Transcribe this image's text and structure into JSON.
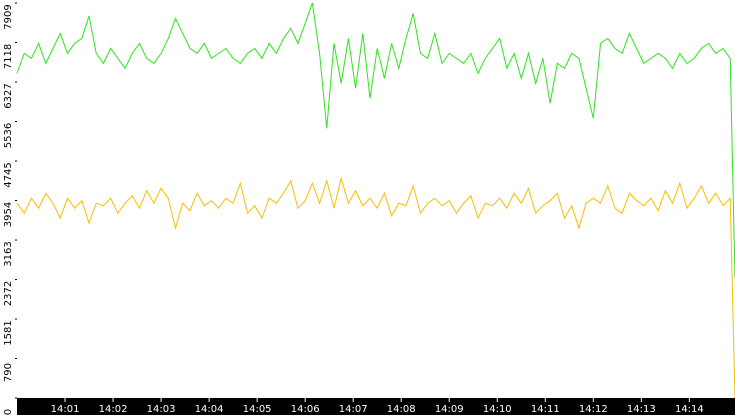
{
  "chart_data": {
    "type": "line",
    "x": [
      0,
      0.15,
      0.3,
      0.45,
      0.6,
      0.75,
      0.9,
      1.05,
      1.2,
      1.35,
      1.5,
      1.65,
      1.8,
      1.95,
      2.1,
      2.25,
      2.4,
      2.55,
      2.7,
      2.85,
      3,
      3.15,
      3.3,
      3.45,
      3.6,
      3.75,
      3.9,
      4.05,
      4.2,
      4.35,
      4.5,
      4.65,
      4.8,
      4.95,
      5.1,
      5.25,
      5.4,
      5.55,
      5.7,
      5.85,
      6,
      6.15,
      6.3,
      6.45,
      6.6,
      6.75,
      6.9,
      7.05,
      7.2,
      7.35,
      7.5,
      7.65,
      7.8,
      7.95,
      8.1,
      8.25,
      8.4,
      8.55,
      8.7,
      8.85,
      9,
      9.15,
      9.3,
      9.45,
      9.6,
      9.75,
      9.9,
      10.05,
      10.2,
      10.35,
      10.5,
      10.65,
      10.8,
      10.95,
      11.1,
      11.25,
      11.4,
      11.55,
      11.7,
      11.85,
      12,
      12.15,
      12.3,
      12.45,
      12.6,
      12.75,
      12.9,
      13.05,
      13.2,
      13.35,
      13.5,
      13.65,
      13.8,
      13.95,
      14.1,
      14.25,
      14.4,
      14.55,
      14.7,
      14.85,
      14.95
    ],
    "series": [
      {
        "color": "#2ee31e",
        "values": [
          6500,
          6900,
          6800,
          7100,
          6700,
          7000,
          7300,
          6900,
          7100,
          7200,
          7650,
          6900,
          6700,
          7000,
          6800,
          6600,
          6900,
          7100,
          6800,
          6700,
          6900,
          7200,
          7600,
          7300,
          7000,
          6900,
          7100,
          6800,
          6900,
          7000,
          6800,
          6700,
          6900,
          7000,
          6800,
          7100,
          6900,
          7200,
          7400,
          7100,
          7500,
          7909,
          6900,
          5400,
          7100,
          6300,
          7200,
          6200,
          7300,
          6000,
          7000,
          6400,
          7100,
          6600,
          7200,
          7700,
          6900,
          6800,
          7300,
          6700,
          6900,
          6800,
          6700,
          6900,
          6500,
          6800,
          7000,
          7200,
          6600,
          6900,
          6400,
          6900,
          6300,
          6800,
          5900,
          6700,
          6600,
          6900,
          6800,
          6200,
          5600,
          7100,
          7200,
          7000,
          6900,
          7300,
          7000,
          6700,
          6800,
          6900,
          6800,
          6600,
          6900,
          6700,
          6800,
          7000,
          7100,
          6900,
          7000,
          6800,
          2400
        ]
      },
      {
        "color": "#f5bf00",
        "values": [
          3900,
          3700,
          4000,
          3800,
          4100,
          3900,
          3600,
          4000,
          3800,
          3950,
          3500,
          3900,
          3850,
          4000,
          3700,
          3900,
          4050,
          3800,
          4150,
          3900,
          4200,
          4000,
          3400,
          3900,
          3750,
          4100,
          3850,
          3950,
          3800,
          4000,
          3900,
          4300,
          3700,
          3850,
          3600,
          4000,
          3900,
          4100,
          4350,
          3800,
          3950,
          4300,
          3900,
          4350,
          3800,
          4400,
          3900,
          4150,
          3850,
          4000,
          3800,
          4100,
          3650,
          3900,
          3850,
          4250,
          3700,
          3900,
          4000,
          3850,
          3950,
          3700,
          3900,
          4050,
          3600,
          3900,
          3850,
          4000,
          3800,
          4100,
          3900,
          4200,
          3700,
          3850,
          3950,
          4100,
          3600,
          3850,
          3400,
          3900,
          4000,
          3900,
          4250,
          3800,
          3700,
          4100,
          3950,
          3850,
          4000,
          3750,
          4150,
          3900,
          4300,
          3800,
          4000,
          4250,
          3900,
          4100,
          3850,
          4000,
          0
        ]
      }
    ],
    "xlim": [
      0,
      14.95
    ],
    "xticks": [
      {
        "value": 1,
        "label": "14:01"
      },
      {
        "value": 2,
        "label": "14:02"
      },
      {
        "value": 3,
        "label": "14:03"
      },
      {
        "value": 4,
        "label": "14:04"
      },
      {
        "value": 5,
        "label": "14:05"
      },
      {
        "value": 6,
        "label": "14:06"
      },
      {
        "value": 7,
        "label": "14:07"
      },
      {
        "value": 8,
        "label": "14:08"
      },
      {
        "value": 9,
        "label": "14:09"
      },
      {
        "value": 10,
        "label": "14:10"
      },
      {
        "value": 11,
        "label": "14:11"
      },
      {
        "value": 12,
        "label": "14:12"
      },
      {
        "value": 13,
        "label": "14:13"
      },
      {
        "value": 14,
        "label": "14:14"
      }
    ],
    "ylim": [
      0,
      7909
    ],
    "yticks": [
      0,
      790,
      1581,
      2372,
      3163,
      3954,
      4745,
      5536,
      6327,
      7118,
      7909
    ]
  }
}
